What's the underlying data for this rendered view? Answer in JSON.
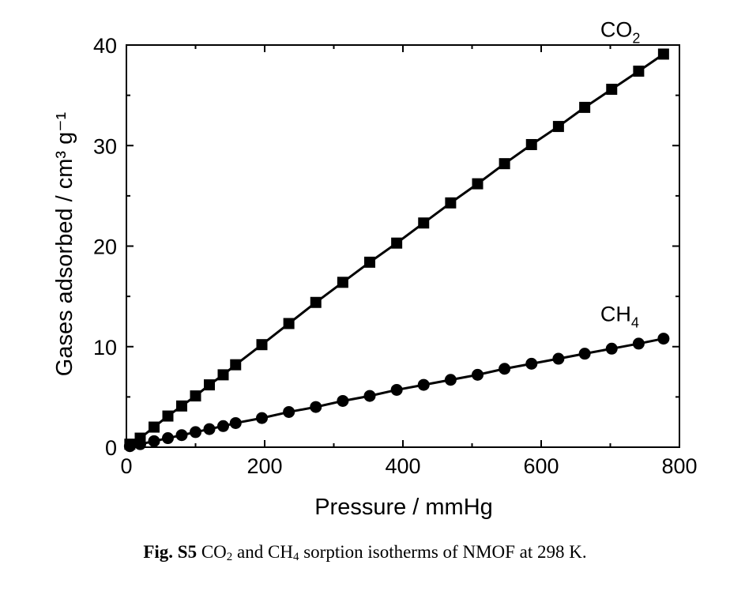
{
  "chart_data": {
    "type": "scatter",
    "xlabel": "Pressure / mmHg",
    "ylabel": "Gases adsorbed / cm³ g⁻¹",
    "xlim": [
      0,
      800
    ],
    "ylim": [
      0,
      40
    ],
    "xticks": [
      "0",
      "200",
      "400",
      "600",
      "800"
    ],
    "yticks": [
      "0",
      "10",
      "20",
      "30",
      "40"
    ],
    "grid": false,
    "series": [
      {
        "name": "CO2",
        "label_main": "CO",
        "label_sub": "2",
        "marker": "square",
        "x": [
          5,
          20,
          40,
          60,
          80,
          100,
          120,
          140,
          158,
          196,
          235,
          274,
          313,
          352,
          391,
          430,
          469,
          508,
          547,
          586,
          625,
          663,
          702,
          741,
          777
        ],
        "y": [
          0.3,
          0.9,
          2.0,
          3.1,
          4.1,
          5.1,
          6.2,
          7.2,
          8.2,
          10.2,
          12.3,
          14.4,
          16.4,
          18.4,
          20.3,
          22.3,
          24.3,
          26.2,
          28.2,
          30.1,
          31.9,
          33.8,
          35.6,
          37.4,
          39.1
        ]
      },
      {
        "name": "CH4",
        "label_main": "CH",
        "label_sub": "4",
        "marker": "circle",
        "x": [
          5,
          20,
          40,
          60,
          80,
          100,
          120,
          140,
          158,
          196,
          235,
          274,
          313,
          352,
          391,
          430,
          469,
          508,
          547,
          586,
          625,
          663,
          702,
          741,
          777
        ],
        "y": [
          0.1,
          0.3,
          0.6,
          0.9,
          1.2,
          1.5,
          1.8,
          2.1,
          2.4,
          2.9,
          3.5,
          4.0,
          4.6,
          5.1,
          5.7,
          6.2,
          6.7,
          7.2,
          7.8,
          8.3,
          8.8,
          9.3,
          9.8,
          10.3,
          10.8
        ]
      }
    ]
  },
  "caption": {
    "fig_label": "Fig. S5",
    "co": " CO",
    "co_sub": "2",
    "and_ch": " and CH",
    "ch_sub": "4",
    "rest": " sorption isotherms of NMOF at 298 K."
  }
}
